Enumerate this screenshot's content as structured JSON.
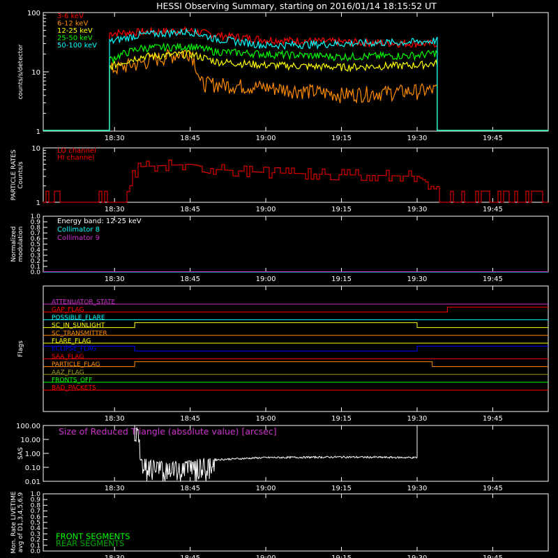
{
  "title": "HESSI Observing Summary, starting on 2016/01/14 18:15:52 UT",
  "time_ticks": [
    "18:30",
    "18:45",
    "19:00",
    "19:15",
    "19:30",
    "19:45"
  ],
  "colors": {
    "background": "#000000",
    "axes": "#ffffff",
    "red": "#ff0000",
    "orange": "#ff8c00",
    "yellow": "#ffff00",
    "green": "#00ff00",
    "cyan": "#00ffff",
    "magenta": "#cc33cc",
    "blue": "#0000ff",
    "olive": "#9a9a1a",
    "front_green": "#00ff00",
    "rear_green": "#00aa00"
  },
  "chart_data": [
    {
      "id": "count-rates",
      "type": "line",
      "ylabel": "counts/s/detector",
      "yscale": "log",
      "ylim": [
        1,
        100
      ],
      "ytick_labels": [
        "1",
        "10",
        "100"
      ],
      "xlim": [
        "18:15:52",
        "19:56"
      ],
      "series": [
        {
          "name": "3-6 keV",
          "color": "#ff0000",
          "x": [
            "18:29",
            "18:35",
            "18:45",
            "18:50",
            "19:00",
            "19:15",
            "19:30",
            "19:34"
          ],
          "values": [
            45,
            47,
            50,
            42,
            35,
            32,
            30,
            30
          ]
        },
        {
          "name": "6-12 keV",
          "color": "#ff8c00",
          "x": [
            "18:29",
            "18:35",
            "18:45",
            "18:47",
            "19:00",
            "19:15",
            "19:30",
            "19:34"
          ],
          "values": [
            11,
            14,
            22,
            6.5,
            5.5,
            4.2,
            4.8,
            5
          ]
        },
        {
          "name": "12-25 keV",
          "color": "#ffff00",
          "x": [
            "18:29",
            "18:35",
            "18:45",
            "18:50",
            "19:00",
            "19:15",
            "19:30",
            "19:34"
          ],
          "values": [
            12,
            18,
            20,
            15,
            13,
            12,
            13,
            14
          ]
        },
        {
          "name": "25-50 keV",
          "color": "#00ff00",
          "x": [
            "18:29",
            "18:35",
            "18:45",
            "18:50",
            "19:00",
            "19:15",
            "19:30",
            "19:34"
          ],
          "values": [
            16,
            25,
            27,
            22,
            20,
            18,
            19,
            21
          ]
        },
        {
          "name": "50-100 keV",
          "color": "#00ffff",
          "x": [
            "18:29",
            "18:35",
            "18:45",
            "18:50",
            "19:00",
            "19:15",
            "19:30",
            "19:34"
          ],
          "values": [
            32,
            42,
            48,
            36,
            28,
            30,
            32,
            34
          ]
        }
      ]
    },
    {
      "id": "particle-rates",
      "type": "line",
      "ylabel": "PARTICLE RATES Counts/s",
      "yscale": "log",
      "ylim": [
        1,
        10
      ],
      "ytick_labels": [
        "1",
        "10"
      ],
      "series": [
        {
          "name": "LO channel",
          "color": "#ff0000",
          "x": [
            "18:32",
            "18:35",
            "18:45",
            "18:50",
            "19:00",
            "19:15",
            "19:30",
            "19:34",
            "19:35"
          ],
          "values": [
            1.5,
            4.5,
            5,
            4,
            3.5,
            3.2,
            3,
            1.5,
            1.5
          ]
        },
        {
          "name": "HI channel",
          "color": "#ff0000",
          "x": [
            "18:32",
            "18:35",
            "18:45",
            "18:50",
            "19:00",
            "19:15",
            "19:30",
            "19:34",
            "19:35"
          ],
          "values": [
            1.5,
            4.2,
            4.8,
            3.8,
            3.4,
            3.1,
            2.9,
            1.5,
            1.5
          ]
        }
      ]
    },
    {
      "id": "modulation",
      "type": "line",
      "ylabel": "Normalized modulation",
      "ylim": [
        0.0,
        1.0
      ],
      "ytick_labels": [
        "0.0",
        "0.1",
        "0.2",
        "0.3",
        "0.4",
        "0.5",
        "0.6",
        "0.7",
        "0.8",
        "0.9",
        "1.0"
      ],
      "annotation": "Energy band: 12-25 keV",
      "series": [
        {
          "name": "Collimator 8",
          "color": "#00ffff",
          "x": [
            "18:15:52",
            "19:56"
          ],
          "values": [
            0,
            0
          ]
        },
        {
          "name": "Collimator 9",
          "color": "#cc33cc",
          "x": [
            "18:15:52",
            "19:56"
          ],
          "values": [
            0,
            0
          ]
        }
      ]
    },
    {
      "id": "flags",
      "type": "line",
      "ylabel": "Flags",
      "series": [
        {
          "name": "ATTENUATOR_STATE",
          "color": "#cc33cc",
          "segments": [
            {
              "from": "18:15:52",
              "to": "19:56",
              "on": 0
            }
          ]
        },
        {
          "name": "GAP_FLAG",
          "color": "#ff0000",
          "segments": [
            {
              "from": "18:15:52",
              "to": "19:36",
              "on": 0
            },
            {
              "from": "19:36",
              "to": "19:56",
              "on": 1
            }
          ]
        },
        {
          "name": "POSSIBLE_FLARE",
          "color": "#00ffff",
          "segments": [
            {
              "from": "18:15:52",
              "to": "19:56",
              "on": 0
            }
          ]
        },
        {
          "name": "SC_IN_SUNLIGHT",
          "color": "#ffff00",
          "segments": [
            {
              "from": "18:15:52",
              "to": "18:34",
              "on": 0
            },
            {
              "from": "18:34",
              "to": "19:30",
              "on": 1
            },
            {
              "from": "19:30",
              "to": "19:56",
              "on": 0
            }
          ]
        },
        {
          "name": "SC_TRANSMITTER",
          "color": "#ff8c00",
          "segments": [
            {
              "from": "18:15:52",
              "to": "19:56",
              "on": 0
            }
          ]
        },
        {
          "name": "FLARE_FLAG",
          "color": "#ffff00",
          "segments": [
            {
              "from": "18:15:52",
              "to": "19:56",
              "on": 0
            }
          ]
        },
        {
          "name": "ECLIPSE_FLAG",
          "color": "#0000ff",
          "segments": [
            {
              "from": "18:15:52",
              "to": "18:34",
              "on": 1
            },
            {
              "from": "18:34",
              "to": "19:30",
              "on": 0
            },
            {
              "from": "19:30",
              "to": "19:56",
              "on": 1
            }
          ]
        },
        {
          "name": "SAA_FLAG",
          "color": "#ff0000",
          "segments": [
            {
              "from": "18:15:52",
              "to": "19:56",
              "on": 0
            }
          ]
        },
        {
          "name": "PARTICLE_FLAG",
          "color": "#ff8c00",
          "segments": [
            {
              "from": "18:15:52",
              "to": "18:34",
              "on": 0
            },
            {
              "from": "18:34",
              "to": "19:33",
              "on": 1
            },
            {
              "from": "19:33",
              "to": "19:56",
              "on": 0
            }
          ]
        },
        {
          "name": "AAZ_FLAG",
          "color": "#9a9a1a",
          "segments": [
            {
              "from": "18:15:52",
              "to": "19:56",
              "on": 0
            }
          ]
        },
        {
          "name": "FRONTS_OFF",
          "color": "#00ff00",
          "segments": [
            {
              "from": "18:15:52",
              "to": "19:56",
              "on": 0
            }
          ]
        },
        {
          "name": "BAD_PACKETS",
          "color": "#ff0000",
          "segments": [
            {
              "from": "18:15:52",
              "to": "19:56",
              "on": 0
            }
          ]
        }
      ]
    },
    {
      "id": "sas",
      "type": "line",
      "ylabel": "SAS",
      "yscale": "log",
      "ylim": [
        0.01,
        100.0
      ],
      "ytick_labels": [
        "100.00",
        "10.00",
        "1.00",
        "0.10",
        "0.01"
      ],
      "annotation": "Size of Reduced Triangle (absolute value) [arcsec]",
      "series": [
        {
          "name": "",
          "color": "#ffffff",
          "x": [
            "18:34",
            "18:35",
            "18:40",
            "18:45",
            "18:50",
            "19:00",
            "19:15",
            "19:30",
            "19:30"
          ],
          "values": [
            100,
            0.3,
            0.15,
            0.2,
            0.35,
            0.5,
            0.55,
            0.5,
            100
          ]
        }
      ]
    },
    {
      "id": "livetime",
      "type": "line",
      "ylabel": "Mon. Rate LIVETIME avg of D1,3,4,5,6,9",
      "ylim": [
        0.0,
        1.0
      ],
      "ytick_labels": [
        "0.0",
        "0.1",
        "0.2",
        "0.3",
        "0.4",
        "0.5",
        "0.6",
        "0.7",
        "0.8",
        "0.9",
        "1.0"
      ],
      "series": [
        {
          "name": "FRONT SEGMENTS",
          "color": "#00ff00",
          "x": [],
          "values": []
        },
        {
          "name": "REAR SEGMENTS",
          "color": "#00aa00",
          "x": [],
          "values": []
        }
      ]
    }
  ]
}
